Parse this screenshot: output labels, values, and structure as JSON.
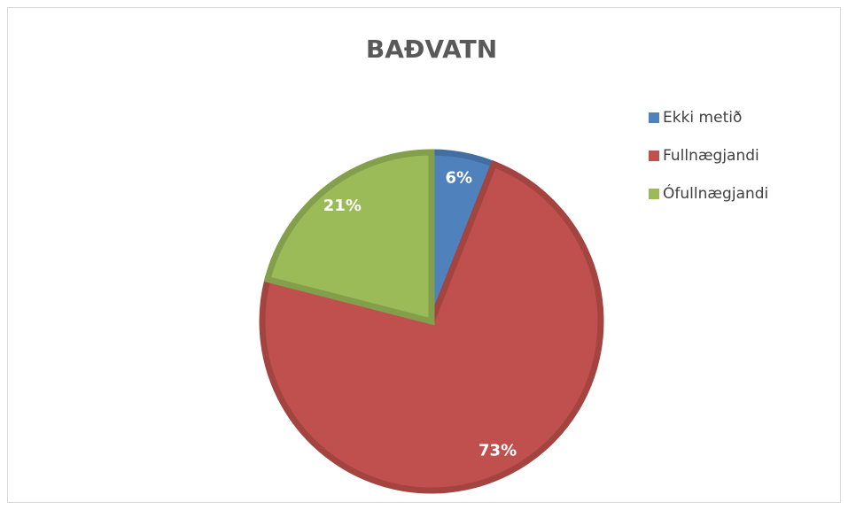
{
  "chart_data": {
    "type": "pie",
    "title": "BAÐVATN",
    "categories": [
      "Ekki metið",
      "Fullnægjandi",
      "Ófullnægjandi"
    ],
    "values": [
      6,
      73,
      21
    ],
    "value_labels": [
      "6%",
      "73%",
      "21%"
    ],
    "colors": [
      "#4f81bd",
      "#c0504d",
      "#9bbb59"
    ],
    "legend": "right"
  }
}
